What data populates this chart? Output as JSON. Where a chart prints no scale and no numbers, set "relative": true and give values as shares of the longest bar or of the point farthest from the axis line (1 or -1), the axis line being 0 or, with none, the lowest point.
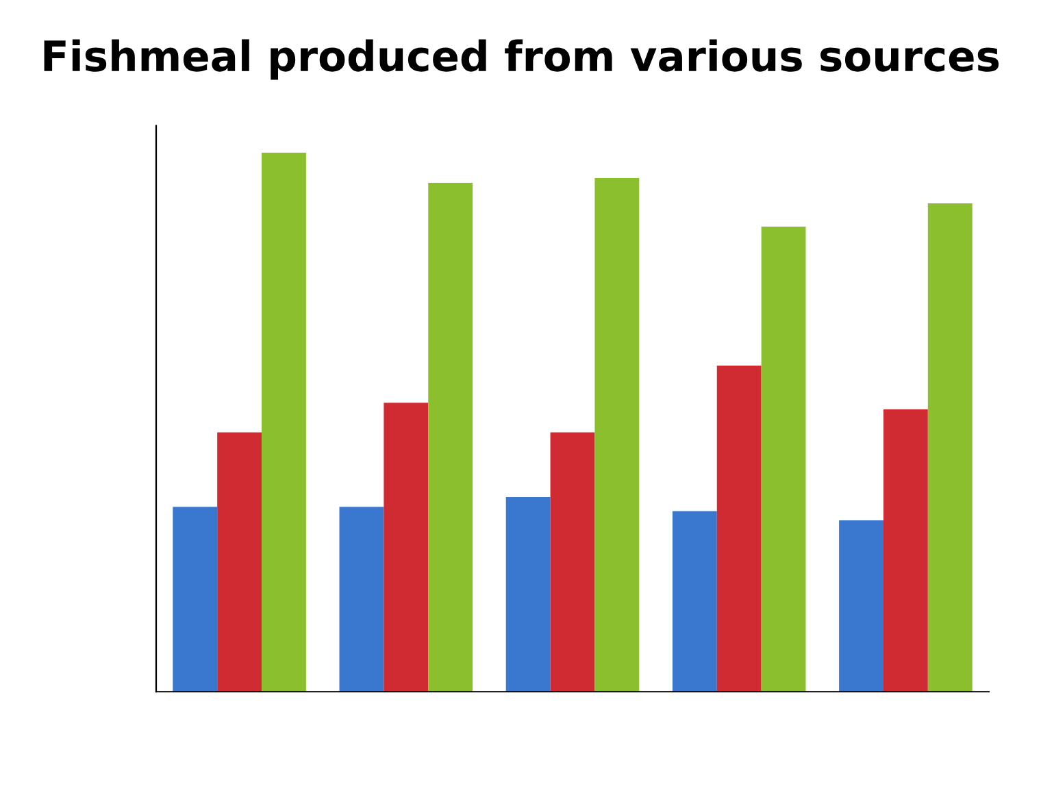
{
  "chart_data": {
    "type": "bar",
    "title": "Fishmeal produced from various sources",
    "relative": true,
    "categories": [
      null,
      null,
      null,
      null,
      null
    ],
    "series": [
      {
        "color": "#3a78d0",
        "values": [
          0.343,
          0.343,
          0.361,
          0.335,
          0.318
        ]
      },
      {
        "color": "#d02a33",
        "values": [
          0.481,
          0.536,
          0.481,
          0.605,
          0.524
        ]
      },
      {
        "color": "#8cbf2e",
        "values": [
          1,
          0.944,
          0.953,
          0.863,
          0.906
        ]
      }
    ]
  }
}
